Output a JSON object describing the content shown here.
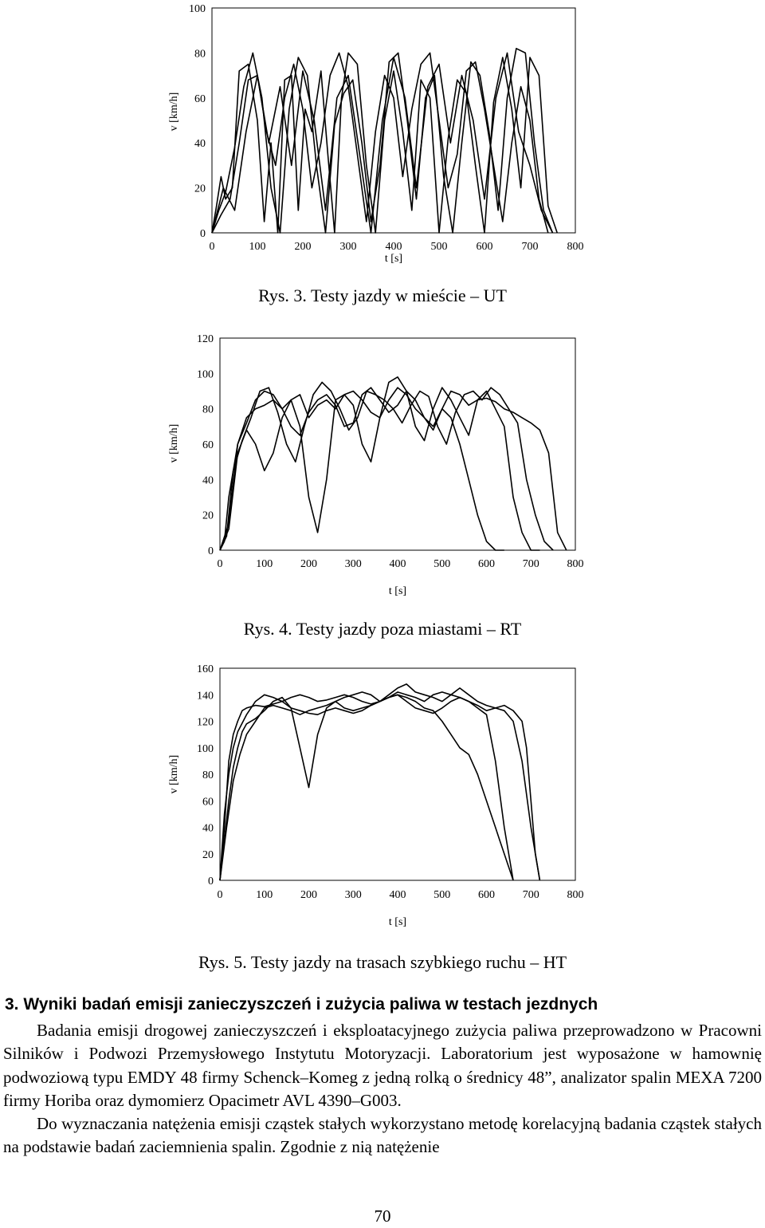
{
  "chart_data": [
    {
      "type": "line",
      "title": "",
      "xlabel": "t [s]",
      "ylabel": "v [km/h]",
      "xlim": [
        0,
        800
      ],
      "ylim": [
        0,
        100
      ],
      "xticks": [
        "0",
        "100",
        "200",
        "300",
        "400",
        "500",
        "600",
        "700",
        "800"
      ],
      "yticks": [
        "100",
        "80",
        "60",
        "40",
        "20",
        "0"
      ],
      "series": [
        {
          "x": [
            0,
            10,
            20,
            30,
            45,
            60,
            80,
            100,
            115,
            130,
            145,
            160,
            175,
            190,
            205,
            220,
            240,
            255,
            270,
            285,
            300,
            320,
            340,
            360,
            380,
            400,
            420,
            440,
            460,
            480,
            500,
            520,
            540,
            560,
            580,
            600,
            620,
            640,
            660,
            680,
            700,
            720,
            740,
            760
          ],
          "y": [
            0,
            12,
            25,
            15,
            20,
            72,
            75,
            50,
            5,
            40,
            0,
            68,
            70,
            10,
            55,
            45,
            72,
            35,
            0,
            60,
            80,
            75,
            30,
            0,
            50,
            72,
            45,
            10,
            68,
            60,
            0,
            42,
            68,
            62,
            30,
            0,
            58,
            78,
            55,
            20,
            78,
            70,
            12,
            0
          ]
        },
        {
          "x": [
            0,
            15,
            30,
            50,
            70,
            90,
            110,
            130,
            150,
            170,
            190,
            210,
            230,
            250,
            270,
            290,
            310,
            330,
            350,
            370,
            390,
            410,
            430,
            450,
            470,
            490,
            510,
            530,
            550,
            570,
            590,
            610,
            630,
            650,
            670,
            690,
            710,
            730,
            750
          ],
          "y": [
            0,
            10,
            18,
            38,
            65,
            80,
            60,
            20,
            0,
            55,
            78,
            70,
            30,
            0,
            48,
            62,
            68,
            40,
            5,
            30,
            76,
            80,
            50,
            15,
            60,
            70,
            25,
            0,
            40,
            76,
            70,
            45,
            10,
            60,
            82,
            80,
            40,
            10,
            0
          ]
        },
        {
          "x": [
            0,
            20,
            40,
            60,
            80,
            100,
            120,
            140,
            160,
            180,
            200,
            220,
            240,
            260,
            280,
            300,
            320,
            340,
            360,
            380,
            400,
            420,
            440,
            460,
            480,
            500,
            520,
            540,
            560,
            580,
            600,
            620,
            640,
            660,
            680,
            700,
            720,
            740
          ],
          "y": [
            0,
            8,
            15,
            40,
            68,
            70,
            45,
            30,
            60,
            75,
            55,
            20,
            40,
            70,
            80,
            65,
            35,
            5,
            45,
            70,
            60,
            25,
            55,
            75,
            80,
            50,
            20,
            35,
            72,
            76,
            55,
            30,
            5,
            40,
            65,
            50,
            15,
            0
          ]
        },
        {
          "x": [
            0,
            25,
            50,
            75,
            100,
            125,
            150,
            175,
            200,
            225,
            250,
            275,
            300,
            325,
            350,
            375,
            400,
            425,
            450,
            475,
            500,
            525,
            550,
            575,
            600,
            625,
            650,
            675,
            700,
            725,
            750
          ],
          "y": [
            0,
            20,
            10,
            45,
            70,
            40,
            65,
            30,
            72,
            50,
            10,
            60,
            70,
            35,
            0,
            50,
            78,
            60,
            20,
            65,
            75,
            40,
            70,
            50,
            15,
            60,
            80,
            45,
            30,
            10,
            0
          ]
        }
      ]
    },
    {
      "type": "line",
      "title": "",
      "xlabel": "t [s]",
      "ylabel": "v [km/h]",
      "xlim": [
        0,
        800
      ],
      "ylim": [
        0,
        120
      ],
      "xticks": [
        "0",
        "100",
        "200",
        "300",
        "400",
        "500",
        "600",
        "700",
        "800"
      ],
      "yticks": [
        "120",
        "100",
        "80",
        "60",
        "40",
        "20",
        "0"
      ],
      "series": [
        {
          "x": [
            0,
            10,
            20,
            40,
            60,
            80,
            100,
            120,
            140,
            160,
            180,
            200,
            220,
            240,
            260,
            280,
            300,
            320,
            340,
            360,
            380,
            400,
            420,
            440,
            460,
            480,
            500,
            520,
            540,
            560,
            580,
            600,
            620,
            640,
            660,
            680,
            700,
            720,
            740,
            760,
            780
          ],
          "y": [
            0,
            5,
            30,
            60,
            72,
            85,
            90,
            88,
            80,
            70,
            65,
            78,
            85,
            88,
            82,
            70,
            72,
            88,
            92,
            85,
            78,
            82,
            90,
            85,
            75,
            68,
            80,
            90,
            88,
            82,
            85,
            86,
            84,
            80,
            78,
            75,
            72,
            68,
            55,
            10,
            0
          ]
        },
        {
          "x": [
            0,
            15,
            30,
            50,
            70,
            90,
            110,
            130,
            150,
            170,
            190,
            210,
            230,
            250,
            270,
            290,
            310,
            330,
            350,
            370,
            390,
            410,
            430,
            450,
            470,
            490,
            510,
            530,
            550,
            570,
            590,
            610,
            630,
            650,
            670,
            690,
            710,
            730,
            750
          ],
          "y": [
            0,
            8,
            45,
            62,
            75,
            90,
            92,
            78,
            60,
            50,
            70,
            88,
            95,
            90,
            80,
            68,
            75,
            90,
            88,
            85,
            80,
            72,
            82,
            90,
            87,
            70,
            60,
            78,
            88,
            90,
            85,
            92,
            88,
            80,
            72,
            40,
            20,
            5,
            0
          ]
        },
        {
          "x": [
            0,
            20,
            40,
            60,
            80,
            100,
            120,
            140,
            160,
            180,
            200,
            220,
            240,
            260,
            280,
            300,
            320,
            340,
            360,
            380,
            400,
            420,
            440,
            460,
            480,
            500,
            520,
            540,
            560,
            580,
            600,
            620,
            640,
            660,
            680,
            700,
            720
          ],
          "y": [
            0,
            12,
            55,
            68,
            60,
            45,
            55,
            75,
            85,
            70,
            30,
            10,
            40,
            85,
            88,
            82,
            60,
            50,
            75,
            95,
            98,
            90,
            70,
            62,
            80,
            92,
            85,
            75,
            65,
            85,
            90,
            80,
            70,
            30,
            10,
            0,
            0
          ]
        },
        {
          "x": [
            0,
            20,
            40,
            60,
            80,
            100,
            120,
            140,
            160,
            180,
            200,
            220,
            240,
            260,
            280,
            300,
            320,
            340,
            360,
            380,
            400,
            420,
            440,
            460,
            480,
            500,
            520,
            540,
            560,
            580,
            600,
            620,
            640
          ],
          "y": [
            0,
            15,
            60,
            75,
            80,
            82,
            85,
            80,
            85,
            88,
            75,
            82,
            85,
            80,
            88,
            90,
            85,
            78,
            75,
            85,
            92,
            88,
            80,
            75,
            70,
            80,
            75,
            60,
            40,
            20,
            5,
            0,
            0
          ]
        }
      ]
    },
    {
      "type": "line",
      "title": "",
      "xlabel": "t [s]",
      "ylabel": "v [km/h]",
      "xlim": [
        0,
        800
      ],
      "ylim": [
        0,
        160
      ],
      "xticks": [
        "0",
        "100",
        "200",
        "300",
        "400",
        "500",
        "600",
        "700",
        "800"
      ],
      "yticks": [
        "160",
        "140",
        "120",
        "100",
        "80",
        "60",
        "40",
        "20",
        "0"
      ],
      "series": [
        {
          "x": [
            0,
            10,
            20,
            30,
            40,
            50,
            60,
            80,
            100,
            120,
            140,
            160,
            180,
            200,
            220,
            240,
            260,
            280,
            300,
            320,
            340,
            360,
            380,
            400,
            420,
            440,
            460,
            480,
            500,
            520,
            540,
            560,
            580,
            600,
            620,
            640,
            660,
            680,
            690,
            700,
            710,
            720
          ],
          "y": [
            0,
            40,
            90,
            110,
            120,
            128,
            130,
            132,
            131,
            133,
            135,
            138,
            140,
            138,
            135,
            136,
            138,
            140,
            138,
            135,
            133,
            135,
            138,
            142,
            140,
            138,
            135,
            140,
            142,
            140,
            138,
            135,
            132,
            128,
            130,
            132,
            128,
            120,
            100,
            60,
            20,
            0
          ]
        },
        {
          "x": [
            0,
            10,
            20,
            30,
            40,
            60,
            80,
            100,
            120,
            140,
            160,
            180,
            200,
            220,
            240,
            260,
            280,
            300,
            320,
            340,
            360,
            380,
            400,
            420,
            440,
            460,
            480,
            500,
            520,
            540,
            560,
            580,
            600,
            620,
            640,
            660
          ],
          "y": [
            0,
            50,
            80,
            100,
            112,
            125,
            135,
            140,
            138,
            135,
            130,
            128,
            126,
            125,
            128,
            130,
            128,
            126,
            128,
            132,
            135,
            138,
            140,
            135,
            130,
            128,
            126,
            130,
            135,
            138,
            135,
            130,
            125,
            90,
            40,
            0
          ]
        },
        {
          "x": [
            0,
            10,
            20,
            30,
            40,
            50,
            60,
            80,
            100,
            120,
            140,
            160,
            180,
            200,
            220,
            240,
            260,
            280,
            300,
            320,
            340,
            360,
            380,
            400,
            420,
            440,
            460,
            480,
            500,
            520,
            540,
            560,
            580,
            600,
            620,
            640,
            660,
            680,
            700,
            720
          ],
          "y": [
            0,
            30,
            60,
            85,
            100,
            112,
            118,
            122,
            128,
            135,
            138,
            130,
            100,
            70,
            110,
            130,
            135,
            138,
            140,
            142,
            140,
            135,
            140,
            145,
            148,
            142,
            140,
            138,
            135,
            140,
            145,
            140,
            135,
            132,
            130,
            128,
            120,
            90,
            40,
            0
          ]
        },
        {
          "x": [
            0,
            15,
            30,
            45,
            60,
            80,
            100,
            120,
            140,
            160,
            180,
            200,
            220,
            240,
            260,
            280,
            300,
            320,
            340,
            360,
            380,
            400,
            420,
            440,
            460,
            480,
            500,
            520,
            540,
            560,
            580,
            600,
            610,
            620,
            630,
            640,
            650,
            660
          ],
          "y": [
            0,
            40,
            75,
            95,
            110,
            120,
            130,
            132,
            130,
            128,
            125,
            128,
            130,
            132,
            135,
            130,
            128,
            130,
            132,
            135,
            138,
            140,
            138,
            135,
            130,
            128,
            120,
            110,
            100,
            95,
            80,
            60,
            50,
            40,
            30,
            20,
            10,
            0
          ]
        }
      ]
    }
  ],
  "captions": {
    "fig3": "Rys. 3. Testy jazdy w mieście – UT",
    "fig4": "Rys. 4. Testy jazdy poza miastami – RT",
    "fig5": "Rys. 5. Testy jazdy na trasach szybkiego ruchu – HT"
  },
  "section": {
    "heading": "3. Wyniki badań emisji zanieczyszczeń i zużycia paliwa w testach jezdnych",
    "paragraph1": "Badania emisji drogowej zanieczyszczeń i eksploatacyjnego zużycia paliwa przeprowadzono w Pracowni Silników i Podwozi Przemysłowego Instytutu Motoryzacji. Laboratorium jest wyposażone w hamownię podwoziową typu EMDY 48 firmy Schenck–Komeg z jedną rolką o średnicy 48”, analizator spalin MEXA 7200 firmy Horiba oraz dymomierz Opacimetr AVL 4390–G003.",
    "paragraph2": "Do wyznaczania natężenia emisji cząstek stałych wykorzystano metodę korelacyjną badania cząstek stałych na podstawie badań zaciemnienia spalin. Zgodnie z nią natężenie"
  },
  "page_number": "70"
}
